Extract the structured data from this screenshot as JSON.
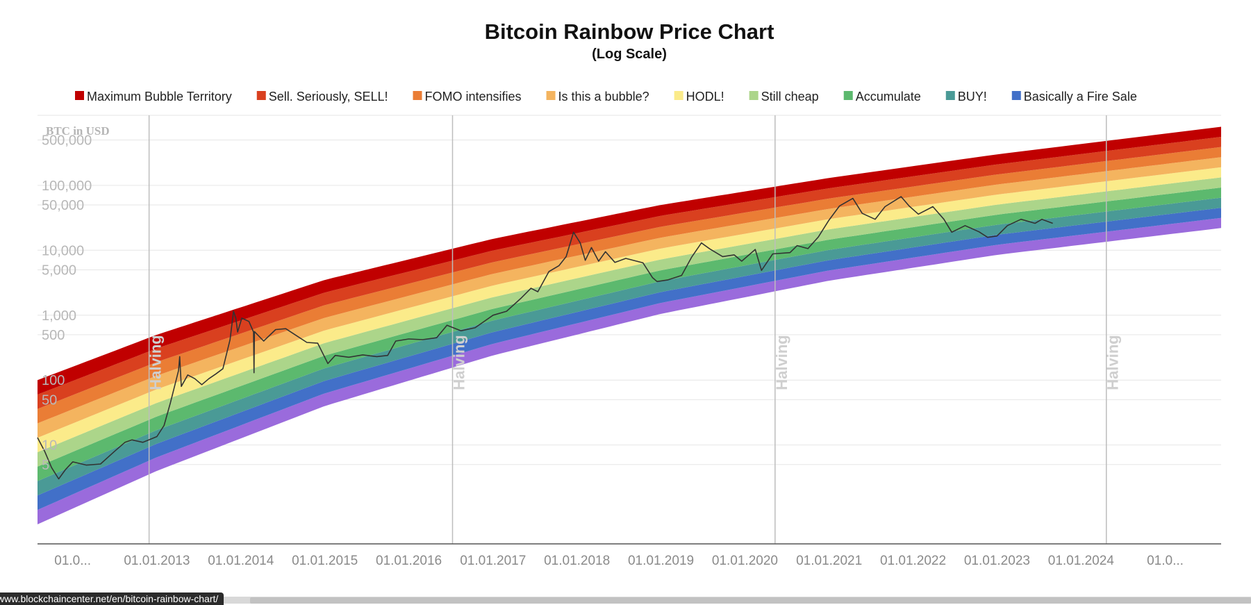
{
  "chart_data": {
    "type": "line",
    "title": "Bitcoin Rainbow Price Chart",
    "subtitle": "(Log Scale)",
    "ylabel": "BTC in USD",
    "yscale": "log",
    "ylim": [
      0.3,
      1200000
    ],
    "xlim": [
      "2011-08-01",
      "2025-09-01"
    ],
    "grid": true,
    "legend_position": "top",
    "y_ticks": [
      {
        "value": 500000,
        "label": "500,000"
      },
      {
        "value": 100000,
        "label": "100,000"
      },
      {
        "value": 50000,
        "label": "50,000"
      },
      {
        "value": 10000,
        "label": "10,000"
      },
      {
        "value": 5000,
        "label": "5,000"
      },
      {
        "value": 1000,
        "label": "1,000"
      },
      {
        "value": 500,
        "label": "500"
      },
      {
        "value": 100,
        "label": "100"
      },
      {
        "value": 50,
        "label": "50"
      },
      {
        "value": 10,
        "label": "10"
      },
      {
        "value": 5,
        "label": "5"
      }
    ],
    "x_ticks": [
      {
        "date": "2012-01-01",
        "label": "01.0..."
      },
      {
        "date": "2013-01-01",
        "label": "01.01.2013"
      },
      {
        "date": "2014-01-01",
        "label": "01.01.2014"
      },
      {
        "date": "2015-01-01",
        "label": "01.01.2015"
      },
      {
        "date": "2016-01-01",
        "label": "01.01.2016"
      },
      {
        "date": "2017-01-01",
        "label": "01.01.2017"
      },
      {
        "date": "2018-01-01",
        "label": "01.01.2018"
      },
      {
        "date": "2019-01-01",
        "label": "01.01.2019"
      },
      {
        "date": "2020-01-01",
        "label": "01.01.2020"
      },
      {
        "date": "2021-01-01",
        "label": "01.01.2021"
      },
      {
        "date": "2022-01-01",
        "label": "01.01.2022"
      },
      {
        "date": "2023-01-01",
        "label": "01.01.2023"
      },
      {
        "date": "2024-01-01",
        "label": "01.01.2024"
      },
      {
        "date": "2025-01-01",
        "label": "01.0..."
      }
    ],
    "halvings": [
      {
        "date": "2012-11-28",
        "label": "Halving"
      },
      {
        "date": "2016-07-09",
        "label": "Halving"
      },
      {
        "date": "2020-05-11",
        "label": "Halving"
      },
      {
        "date": "2024-04-20",
        "label": "Halving"
      }
    ],
    "bands": [
      {
        "name": "Maximum Bubble Territory",
        "color": "#c00000"
      },
      {
        "name": "Sell. Seriously, SELL!",
        "color": "#d9401f"
      },
      {
        "name": "FOMO intensifies",
        "color": "#ea7d35"
      },
      {
        "name": "Is this a bubble?",
        "color": "#f4b45f"
      },
      {
        "name": "HODL!",
        "color": "#fbeb8a"
      },
      {
        "name": "Still cheap",
        "color": "#acd58a"
      },
      {
        "name": "Accumulate",
        "color": "#5cb96e"
      },
      {
        "name": "BUY!",
        "color": "#4a9a96"
      },
      {
        "name": "Basically a Fire Sale",
        "color": "#4270c8"
      }
    ],
    "bottom_band_color": "#9a6bdc",
    "rainbow_bottom": [
      {
        "date": "2011-08-01",
        "value": 0.6
      },
      {
        "date": "2013-01-01",
        "value": 4
      },
      {
        "date": "2015-01-01",
        "value": 40
      },
      {
        "date": "2017-01-01",
        "value": 240
      },
      {
        "date": "2019-01-01",
        "value": 1050
      },
      {
        "date": "2021-01-01",
        "value": 3400
      },
      {
        "date": "2023-01-01",
        "value": 8500
      },
      {
        "date": "2025-09-01",
        "value": 22000
      }
    ],
    "rainbow_top": [
      {
        "date": "2011-08-01",
        "value": 100
      },
      {
        "date": "2013-01-01",
        "value": 500
      },
      {
        "date": "2015-01-01",
        "value": 3500
      },
      {
        "date": "2017-01-01",
        "value": 15000
      },
      {
        "date": "2019-01-01",
        "value": 50000
      },
      {
        "date": "2021-01-01",
        "value": 130000
      },
      {
        "date": "2023-01-01",
        "value": 300000
      },
      {
        "date": "2025-09-01",
        "value": 800000
      }
    ],
    "series": [
      {
        "name": "BTC price",
        "color": "#333333",
        "points": [
          [
            "2011-08-01",
            13
          ],
          [
            "2011-09-01",
            8
          ],
          [
            "2011-10-01",
            4.5
          ],
          [
            "2011-11-01",
            3
          ],
          [
            "2011-12-01",
            4.2
          ],
          [
            "2012-01-01",
            5.5
          ],
          [
            "2012-03-01",
            4.9
          ],
          [
            "2012-05-01",
            5.1
          ],
          [
            "2012-07-01",
            8
          ],
          [
            "2012-08-15",
            11
          ],
          [
            "2012-09-15",
            12
          ],
          [
            "2012-11-01",
            11
          ],
          [
            "2013-01-01",
            13.5
          ],
          [
            "2013-02-01",
            20
          ],
          [
            "2013-03-01",
            45
          ],
          [
            "2013-04-05",
            140
          ],
          [
            "2013-04-10",
            230
          ],
          [
            "2013-04-17",
            80
          ],
          [
            "2013-05-15",
            120
          ],
          [
            "2013-06-15",
            105
          ],
          [
            "2013-07-15",
            85
          ],
          [
            "2013-08-15",
            105
          ],
          [
            "2013-09-15",
            125
          ],
          [
            "2013-10-15",
            150
          ],
          [
            "2013-11-15",
            420
          ],
          [
            "2013-11-30",
            1150
          ],
          [
            "2013-12-10",
            900
          ],
          [
            "2013-12-18",
            550
          ],
          [
            "2014-01-05",
            900
          ],
          [
            "2014-02-05",
            800
          ],
          [
            "2014-02-25",
            550
          ],
          [
            "2014-02-27",
            130
          ],
          [
            "2014-03-01",
            560
          ],
          [
            "2014-04-10",
            400
          ],
          [
            "2014-06-01",
            600
          ],
          [
            "2014-07-15",
            620
          ],
          [
            "2014-09-01",
            480
          ],
          [
            "2014-10-15",
            380
          ],
          [
            "2014-12-01",
            370
          ],
          [
            "2015-01-14",
            180
          ],
          [
            "2015-02-15",
            240
          ],
          [
            "2015-04-15",
            225
          ],
          [
            "2015-06-15",
            245
          ],
          [
            "2015-08-15",
            230
          ],
          [
            "2015-10-01",
            240
          ],
          [
            "2015-11-05",
            400
          ],
          [
            "2016-01-01",
            430
          ],
          [
            "2016-03-01",
            420
          ],
          [
            "2016-05-01",
            450
          ],
          [
            "2016-06-15",
            700
          ],
          [
            "2016-08-15",
            575
          ],
          [
            "2016-10-15",
            640
          ],
          [
            "2017-01-01",
            1000
          ],
          [
            "2017-03-01",
            1150
          ],
          [
            "2017-05-01",
            1800
          ],
          [
            "2017-06-15",
            2600
          ],
          [
            "2017-07-15",
            2300
          ],
          [
            "2017-09-01",
            4700
          ],
          [
            "2017-10-15",
            5800
          ],
          [
            "2017-11-15",
            8000
          ],
          [
            "2017-12-17",
            19000
          ],
          [
            "2018-01-15",
            13000
          ],
          [
            "2018-02-06",
            7000
          ],
          [
            "2018-03-05",
            11000
          ],
          [
            "2018-04-05",
            6800
          ],
          [
            "2018-05-05",
            9500
          ],
          [
            "2018-06-15",
            6500
          ],
          [
            "2018-08-01",
            7500
          ],
          [
            "2018-10-15",
            6400
          ],
          [
            "2018-11-25",
            3800
          ],
          [
            "2018-12-15",
            3300
          ],
          [
            "2019-02-01",
            3500
          ],
          [
            "2019-04-01",
            4100
          ],
          [
            "2019-05-15",
            7900
          ],
          [
            "2019-06-26",
            13000
          ],
          [
            "2019-08-01",
            10500
          ],
          [
            "2019-09-26",
            8000
          ],
          [
            "2019-11-15",
            8500
          ],
          [
            "2019-12-18",
            6800
          ],
          [
            "2020-02-15",
            10300
          ],
          [
            "2020-03-13",
            4900
          ],
          [
            "2020-05-01",
            8800
          ],
          [
            "2020-07-15",
            9200
          ],
          [
            "2020-08-15",
            11800
          ],
          [
            "2020-10-01",
            10600
          ],
          [
            "2020-11-15",
            16000
          ],
          [
            "2020-12-31",
            29000
          ],
          [
            "2021-02-15",
            48000
          ],
          [
            "2021-04-14",
            63000
          ],
          [
            "2021-05-25",
            37000
          ],
          [
            "2021-07-20",
            30000
          ],
          [
            "2021-09-01",
            47000
          ],
          [
            "2021-11-10",
            67000
          ],
          [
            "2021-12-15",
            48000
          ],
          [
            "2022-01-24",
            36000
          ],
          [
            "2022-03-28",
            47000
          ],
          [
            "2022-05-15",
            30000
          ],
          [
            "2022-06-18",
            19000
          ],
          [
            "2022-08-15",
            24000
          ],
          [
            "2022-10-15",
            19200
          ],
          [
            "2022-11-21",
            15800
          ],
          [
            "2023-01-01",
            16600
          ],
          [
            "2023-02-15",
            24000
          ],
          [
            "2023-04-15",
            30000
          ],
          [
            "2023-06-15",
            26000
          ],
          [
            "2023-07-15",
            30000
          ],
          [
            "2023-08-31",
            26000
          ]
        ]
      }
    ]
  },
  "status": {
    "url": "www.blockchaincenter.net/en/bitcoin-rainbow-chart/"
  }
}
